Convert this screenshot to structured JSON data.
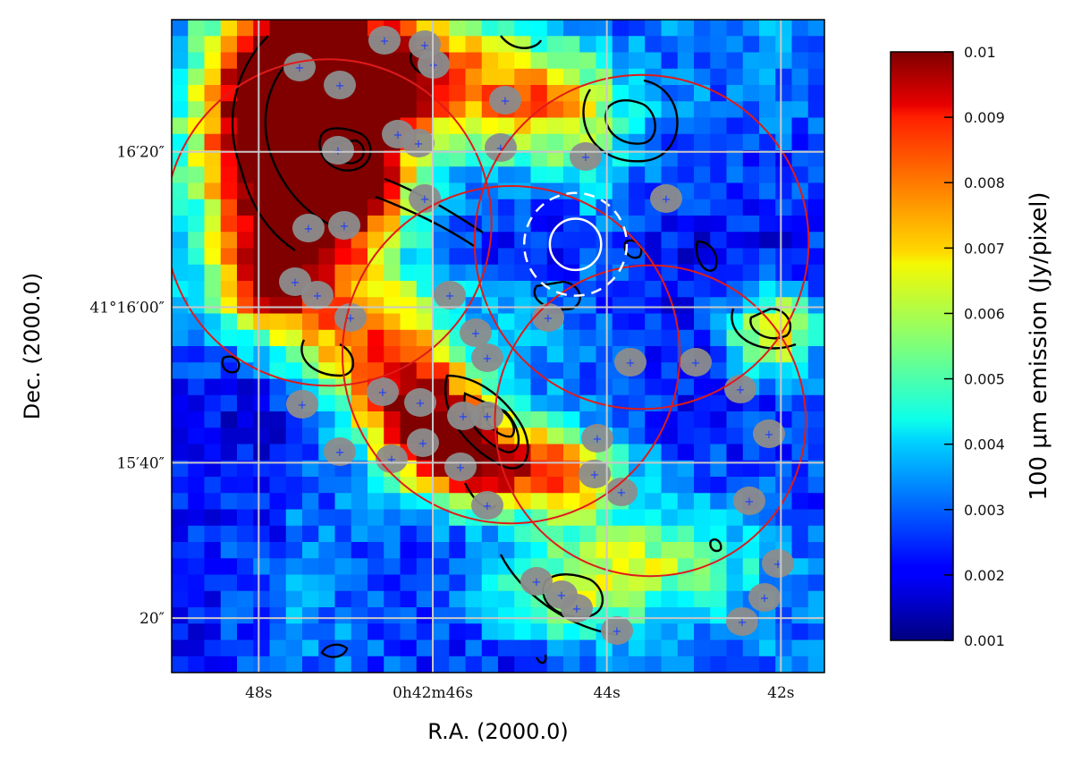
{
  "chart_data": {
    "type": "heatmap",
    "title": "",
    "xlabel": "R.A. (2000.0)",
    "ylabel": "Dec. (2000.0)",
    "colorbar": {
      "label": "100 μm emission (Jy/pixel)",
      "range": [
        0.001,
        0.01
      ],
      "ticks": [
        "0.01",
        "0.009",
        "0.008",
        "0.007",
        "0.006",
        "0.005",
        "0.004",
        "0.003",
        "0.002",
        "0.001"
      ],
      "colormap": "jet"
    },
    "x_ticks": [
      {
        "sec": 48,
        "label": "48s"
      },
      {
        "sec": 46,
        "label": "0h42m46s"
      },
      {
        "sec": 44,
        "label": "44s"
      },
      {
        "sec": 42,
        "label": "42s"
      }
    ],
    "y_ticks": [
      {
        "arcsec": 20,
        "label": "16′20″"
      },
      {
        "arcsec": 0,
        "label": "41°16′00″"
      },
      {
        "arcsec": -20,
        "label": "15′40″"
      },
      {
        "arcsec": -40,
        "label": "20″"
      }
    ],
    "xlim_sec": [
      49.0,
      41.5
    ],
    "ylim_arcsec": [
      -47,
      37
    ],
    "grid": true,
    "overlays": {
      "red_circles_arcsec": [
        {
          "x": 47.2,
          "y": 10.9,
          "r": 21.0
        },
        {
          "x": 45.1,
          "y": -6.1,
          "r": 21.7
        },
        {
          "x": 43.6,
          "y": 8.4,
          "r": 21.5
        },
        {
          "x": 43.5,
          "y": -14.6,
          "r": 20.0
        }
      ],
      "white_circles": [
        {
          "x": 44.36,
          "y": 8.1,
          "r": 3.3,
          "style": "solid"
        },
        {
          "x": 44.36,
          "y": 8.1,
          "r": 6.6,
          "style": "dashed"
        }
      ]
    }
  }
}
